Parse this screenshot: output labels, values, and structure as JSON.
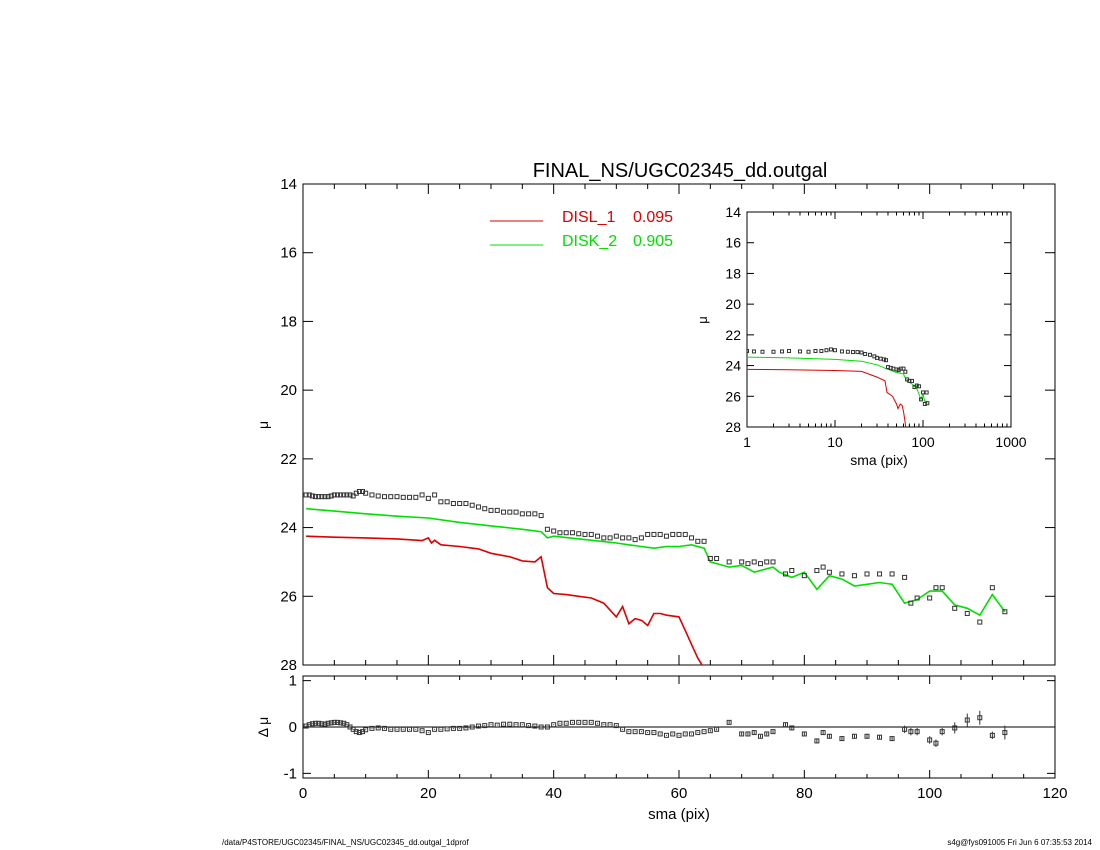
{
  "chart_data": [
    {
      "id": "main",
      "type": "line",
      "title": "FINAL_NS/UGC02345_dd.outgal",
      "xlabel": "",
      "ylabel": "μ",
      "xlim": [
        0,
        120
      ],
      "ylim": [
        28,
        14
      ],
      "y_inverted": true,
      "yticks": [
        14,
        16,
        18,
        20,
        22,
        24,
        26,
        28
      ],
      "legend_placement": "top-center",
      "series": [
        {
          "name": "DISL_1",
          "weight": "0.095",
          "color": "#e00000",
          "style": "line",
          "x": [
            0.5,
            5,
            10,
            15,
            19,
            20,
            20.5,
            21,
            22,
            25,
            28,
            30,
            33,
            35,
            37,
            38,
            39,
            40,
            42,
            44,
            46,
            48,
            50,
            51,
            52,
            53,
            54,
            55,
            56,
            57,
            58,
            60,
            61,
            62,
            63,
            64
          ],
          "y": [
            24.25,
            24.28,
            24.3,
            24.33,
            24.38,
            24.3,
            24.45,
            24.37,
            24.5,
            24.55,
            24.62,
            24.75,
            24.85,
            24.97,
            25.0,
            24.85,
            25.75,
            25.92,
            25.95,
            26.0,
            26.05,
            26.2,
            26.6,
            26.3,
            26.8,
            26.65,
            26.7,
            26.85,
            26.5,
            26.5,
            26.55,
            26.6,
            27.0,
            27.4,
            27.8,
            28.1
          ]
        },
        {
          "name": "DISK_2",
          "weight": "0.905",
          "color": "#00e000",
          "style": "line",
          "x": [
            0.5,
            5,
            10,
            15,
            20,
            25,
            30,
            35,
            38,
            39,
            40,
            45,
            50,
            52,
            54,
            56,
            58,
            60,
            62,
            64,
            65,
            66,
            68,
            70,
            72,
            74,
            75,
            76,
            78,
            80,
            82,
            84,
            86,
            88,
            90,
            92,
            94,
            96,
            98,
            100,
            102,
            104,
            106,
            108,
            110,
            112
          ],
          "y": [
            23.45,
            23.52,
            23.6,
            23.67,
            23.72,
            23.85,
            23.95,
            24.05,
            24.12,
            24.3,
            24.25,
            24.35,
            24.45,
            24.5,
            24.55,
            24.6,
            24.55,
            24.55,
            24.5,
            24.6,
            25.0,
            25.05,
            25.15,
            25.1,
            25.3,
            25.2,
            25.15,
            25.3,
            25.45,
            25.3,
            25.8,
            25.4,
            25.5,
            25.7,
            25.65,
            25.6,
            25.65,
            26.2,
            26.1,
            25.85,
            25.85,
            26.25,
            26.35,
            26.55,
            25.95,
            26.45
          ]
        },
        {
          "name": "",
          "color": "#333333",
          "style": "markers",
          "x": [
            0.5,
            1,
            1.5,
            2,
            2.5,
            3,
            3.5,
            4,
            4.5,
            5,
            5.5,
            6,
            6.5,
            7,
            7.5,
            8,
            8.5,
            9,
            9.5,
            10,
            11,
            12,
            13,
            14,
            15,
            16,
            17,
            18,
            19,
            20,
            21,
            22,
            23,
            24,
            25,
            26,
            27,
            28,
            29,
            30,
            31,
            32,
            33,
            34,
            35,
            36,
            37,
            38,
            39,
            40,
            41,
            42,
            43,
            44,
            45,
            46,
            47,
            48,
            49,
            50,
            51,
            52,
            53,
            54,
            55,
            56,
            57,
            58,
            59,
            60,
            61,
            62,
            63,
            64,
            65,
            66,
            68,
            70,
            71,
            72,
            73,
            74,
            75,
            77,
            78,
            80,
            82,
            83,
            84,
            86,
            88,
            90,
            92,
            94,
            96,
            97,
            98,
            100,
            101,
            102,
            104,
            106,
            108,
            110,
            112
          ],
          "y": [
            23.05,
            23.05,
            23.08,
            23.1,
            23.1,
            23.1,
            23.1,
            23.1,
            23.08,
            23.05,
            23.05,
            23.05,
            23.05,
            23.05,
            23.05,
            23.08,
            23.0,
            22.95,
            22.95,
            23.0,
            23.05,
            23.08,
            23.1,
            23.1,
            23.1,
            23.12,
            23.12,
            23.12,
            23.05,
            23.15,
            23.05,
            23.25,
            23.25,
            23.3,
            23.3,
            23.3,
            23.35,
            23.4,
            23.45,
            23.5,
            23.5,
            23.55,
            23.55,
            23.55,
            23.6,
            23.6,
            23.6,
            23.65,
            24.05,
            24.1,
            24.15,
            24.15,
            24.15,
            24.18,
            24.2,
            24.2,
            24.25,
            24.3,
            24.3,
            24.25,
            24.3,
            24.3,
            24.35,
            24.3,
            24.2,
            24.2,
            24.2,
            24.25,
            24.2,
            24.2,
            24.2,
            24.3,
            24.4,
            24.4,
            24.9,
            24.9,
            25.0,
            25.0,
            25.05,
            25.0,
            25.05,
            25.0,
            25.0,
            25.35,
            25.25,
            25.4,
            25.25,
            25.15,
            25.3,
            25.35,
            25.4,
            25.35,
            25.35,
            25.35,
            25.45,
            26.2,
            26.05,
            26.05,
            25.75,
            25.75,
            26.35,
            26.5,
            26.75,
            25.75,
            26.45
          ]
        }
      ],
      "legend": [
        {
          "label": "DISL_1",
          "value": "0.095",
          "color": "#e00000"
        },
        {
          "label": "DISK_2",
          "value": "0.905",
          "color": "#00e000"
        }
      ]
    },
    {
      "id": "residual",
      "type": "scatter",
      "xlabel": "sma (pix)",
      "ylabel": "Δ μ",
      "xlim": [
        0,
        120
      ],
      "ylim": [
        -1.1,
        1.1
      ],
      "xticks": [
        0,
        20,
        40,
        60,
        80,
        100,
        120
      ],
      "yticks": [
        1,
        0,
        -1
      ],
      "zero_line": 0,
      "series": [
        {
          "name": "",
          "color": "#333333",
          "style": "markers",
          "x": [
            0.5,
            1,
            1.5,
            2,
            2.5,
            3,
            3.5,
            4,
            4.5,
            5,
            5.5,
            6,
            6.5,
            7,
            7.5,
            8,
            8.5,
            9,
            9.5,
            10,
            11,
            12,
            13,
            14,
            15,
            16,
            17,
            18,
            19,
            20,
            21,
            22,
            23,
            24,
            25,
            26,
            27,
            28,
            29,
            30,
            31,
            32,
            33,
            34,
            35,
            36,
            37,
            38,
            39,
            40,
            41,
            42,
            43,
            44,
            45,
            46,
            47,
            48,
            49,
            50,
            51,
            52,
            53,
            54,
            55,
            56,
            57,
            58,
            59,
            60,
            61,
            62,
            63,
            64,
            65,
            66,
            68,
            70,
            71,
            72,
            73,
            74,
            75,
            77,
            78,
            80,
            82,
            83,
            84,
            86,
            88,
            90,
            92,
            94,
            96,
            97,
            98,
            100,
            101,
            102,
            104,
            106,
            108,
            110,
            112
          ],
          "y": [
            0.02,
            0.05,
            0.07,
            0.08,
            0.08,
            0.07,
            0.06,
            0.08,
            0.09,
            0.1,
            0.1,
            0.09,
            0.08,
            0.05,
            0.0,
            -0.05,
            -0.1,
            -0.12,
            -0.1,
            -0.06,
            -0.03,
            -0.02,
            -0.03,
            -0.05,
            -0.05,
            -0.05,
            -0.05,
            -0.05,
            -0.08,
            -0.12,
            -0.05,
            -0.05,
            -0.04,
            -0.03,
            -0.03,
            -0.02,
            0.0,
            0.02,
            0.03,
            0.05,
            0.04,
            0.06,
            0.06,
            0.05,
            0.05,
            0.03,
            0.02,
            0.0,
            0.0,
            0.05,
            0.08,
            0.08,
            0.1,
            0.1,
            0.1,
            0.1,
            0.08,
            0.05,
            0.05,
            0.03,
            -0.05,
            -0.1,
            -0.1,
            -0.1,
            -0.12,
            -0.12,
            -0.15,
            -0.18,
            -0.15,
            -0.18,
            -0.15,
            -0.15,
            -0.12,
            -0.1,
            -0.08,
            -0.05,
            0.1,
            -0.15,
            -0.15,
            -0.12,
            -0.2,
            -0.15,
            -0.1,
            0.05,
            -0.02,
            -0.15,
            -0.3,
            -0.12,
            -0.2,
            -0.25,
            -0.2,
            -0.2,
            -0.22,
            -0.25,
            -0.05,
            -0.1,
            -0.1,
            -0.28,
            -0.35,
            -0.1,
            -0.02,
            0.15,
            0.2,
            -0.18,
            -0.12
          ],
          "err": [
            0.01,
            0.01,
            0.01,
            0.01,
            0.01,
            0.01,
            0.01,
            0.01,
            0.01,
            0.01,
            0.01,
            0.01,
            0.01,
            0.01,
            0.01,
            0.01,
            0.01,
            0.01,
            0.01,
            0.01,
            0.01,
            0.01,
            0.01,
            0.01,
            0.01,
            0.01,
            0.01,
            0.01,
            0.01,
            0.01,
            0.01,
            0.01,
            0.01,
            0.01,
            0.01,
            0.01,
            0.01,
            0.01,
            0.01,
            0.01,
            0.01,
            0.01,
            0.01,
            0.01,
            0.01,
            0.01,
            0.01,
            0.01,
            0.01,
            0.01,
            0.01,
            0.01,
            0.01,
            0.01,
            0.01,
            0.01,
            0.01,
            0.01,
            0.01,
            0.01,
            0.01,
            0.01,
            0.01,
            0.01,
            0.01,
            0.01,
            0.01,
            0.01,
            0.01,
            0.01,
            0.01,
            0.01,
            0.01,
            0.01,
            0.02,
            0.02,
            0.03,
            0.03,
            0.03,
            0.03,
            0.03,
            0.03,
            0.03,
            0.04,
            0.04,
            0.04,
            0.05,
            0.05,
            0.05,
            0.05,
            0.05,
            0.05,
            0.05,
            0.05,
            0.08,
            0.08,
            0.08,
            0.08,
            0.08,
            0.08,
            0.12,
            0.14,
            0.15,
            0.08,
            0.15
          ]
        }
      ]
    },
    {
      "id": "inset",
      "type": "line",
      "xlabel": "sma (pix)",
      "ylabel": "μ",
      "x_scale": "log",
      "xlim": [
        1,
        1000
      ],
      "ylim": [
        28,
        14
      ],
      "y_inverted": true,
      "xticks": [
        1,
        10,
        100,
        1000
      ],
      "xtick_labels": [
        "1",
        "10",
        "100",
        "1000"
      ],
      "yticks": [
        14,
        16,
        18,
        20,
        22,
        24,
        26,
        28
      ],
      "series": [
        {
          "name": "",
          "color": "#e00000",
          "style": "line",
          "x": [
            1,
            3,
            10,
            20,
            30,
            37,
            39,
            45,
            50,
            52,
            55,
            58,
            60,
            62,
            64
          ],
          "y": [
            24.25,
            24.27,
            24.32,
            24.38,
            24.75,
            25.0,
            25.75,
            26.0,
            26.5,
            26.8,
            26.5,
            26.6,
            27.0,
            27.5,
            28.1
          ]
        },
        {
          "name": "",
          "color": "#00e000",
          "style": "line",
          "x": [
            1,
            3,
            10,
            20,
            30,
            40,
            50,
            60,
            65,
            75,
            85,
            95,
            100,
            105,
            112
          ],
          "y": [
            23.45,
            23.5,
            23.6,
            23.72,
            23.95,
            24.25,
            24.45,
            24.55,
            25.0,
            25.2,
            25.5,
            26.2,
            25.85,
            26.35,
            26.45
          ]
        },
        {
          "name": "",
          "color": "#333333",
          "style": "markers",
          "x": [
            1,
            1.2,
            1.5,
            2,
            2.5,
            3,
            4,
            5,
            6,
            7,
            8,
            9,
            10,
            12,
            14,
            16,
            18,
            20,
            22,
            25,
            28,
            30,
            33,
            36,
            38,
            40,
            43,
            46,
            50,
            53,
            56,
            60,
            63,
            66,
            70,
            75,
            80,
            85,
            90,
            95,
            100,
            105,
            110,
            112
          ],
          "y": [
            23.05,
            23.08,
            23.1,
            23.1,
            23.08,
            23.05,
            23.08,
            23.1,
            23.05,
            23.05,
            23.0,
            22.95,
            23.0,
            23.08,
            23.1,
            23.12,
            23.12,
            23.15,
            23.25,
            23.3,
            23.4,
            23.5,
            23.55,
            23.6,
            23.65,
            24.1,
            24.15,
            24.2,
            24.25,
            24.3,
            24.2,
            24.2,
            24.4,
            24.9,
            25.0,
            25.0,
            25.4,
            25.3,
            25.35,
            26.2,
            25.75,
            26.5,
            25.75,
            26.45
          ]
        }
      ]
    }
  ],
  "footer": {
    "left": "/data/P4STORE/UGC02345/FINAL_NS/UGC02345_dd.outgal_1dprof",
    "right": "s4g@fys091005  Fri Jun  6 07:35:53 2014"
  }
}
